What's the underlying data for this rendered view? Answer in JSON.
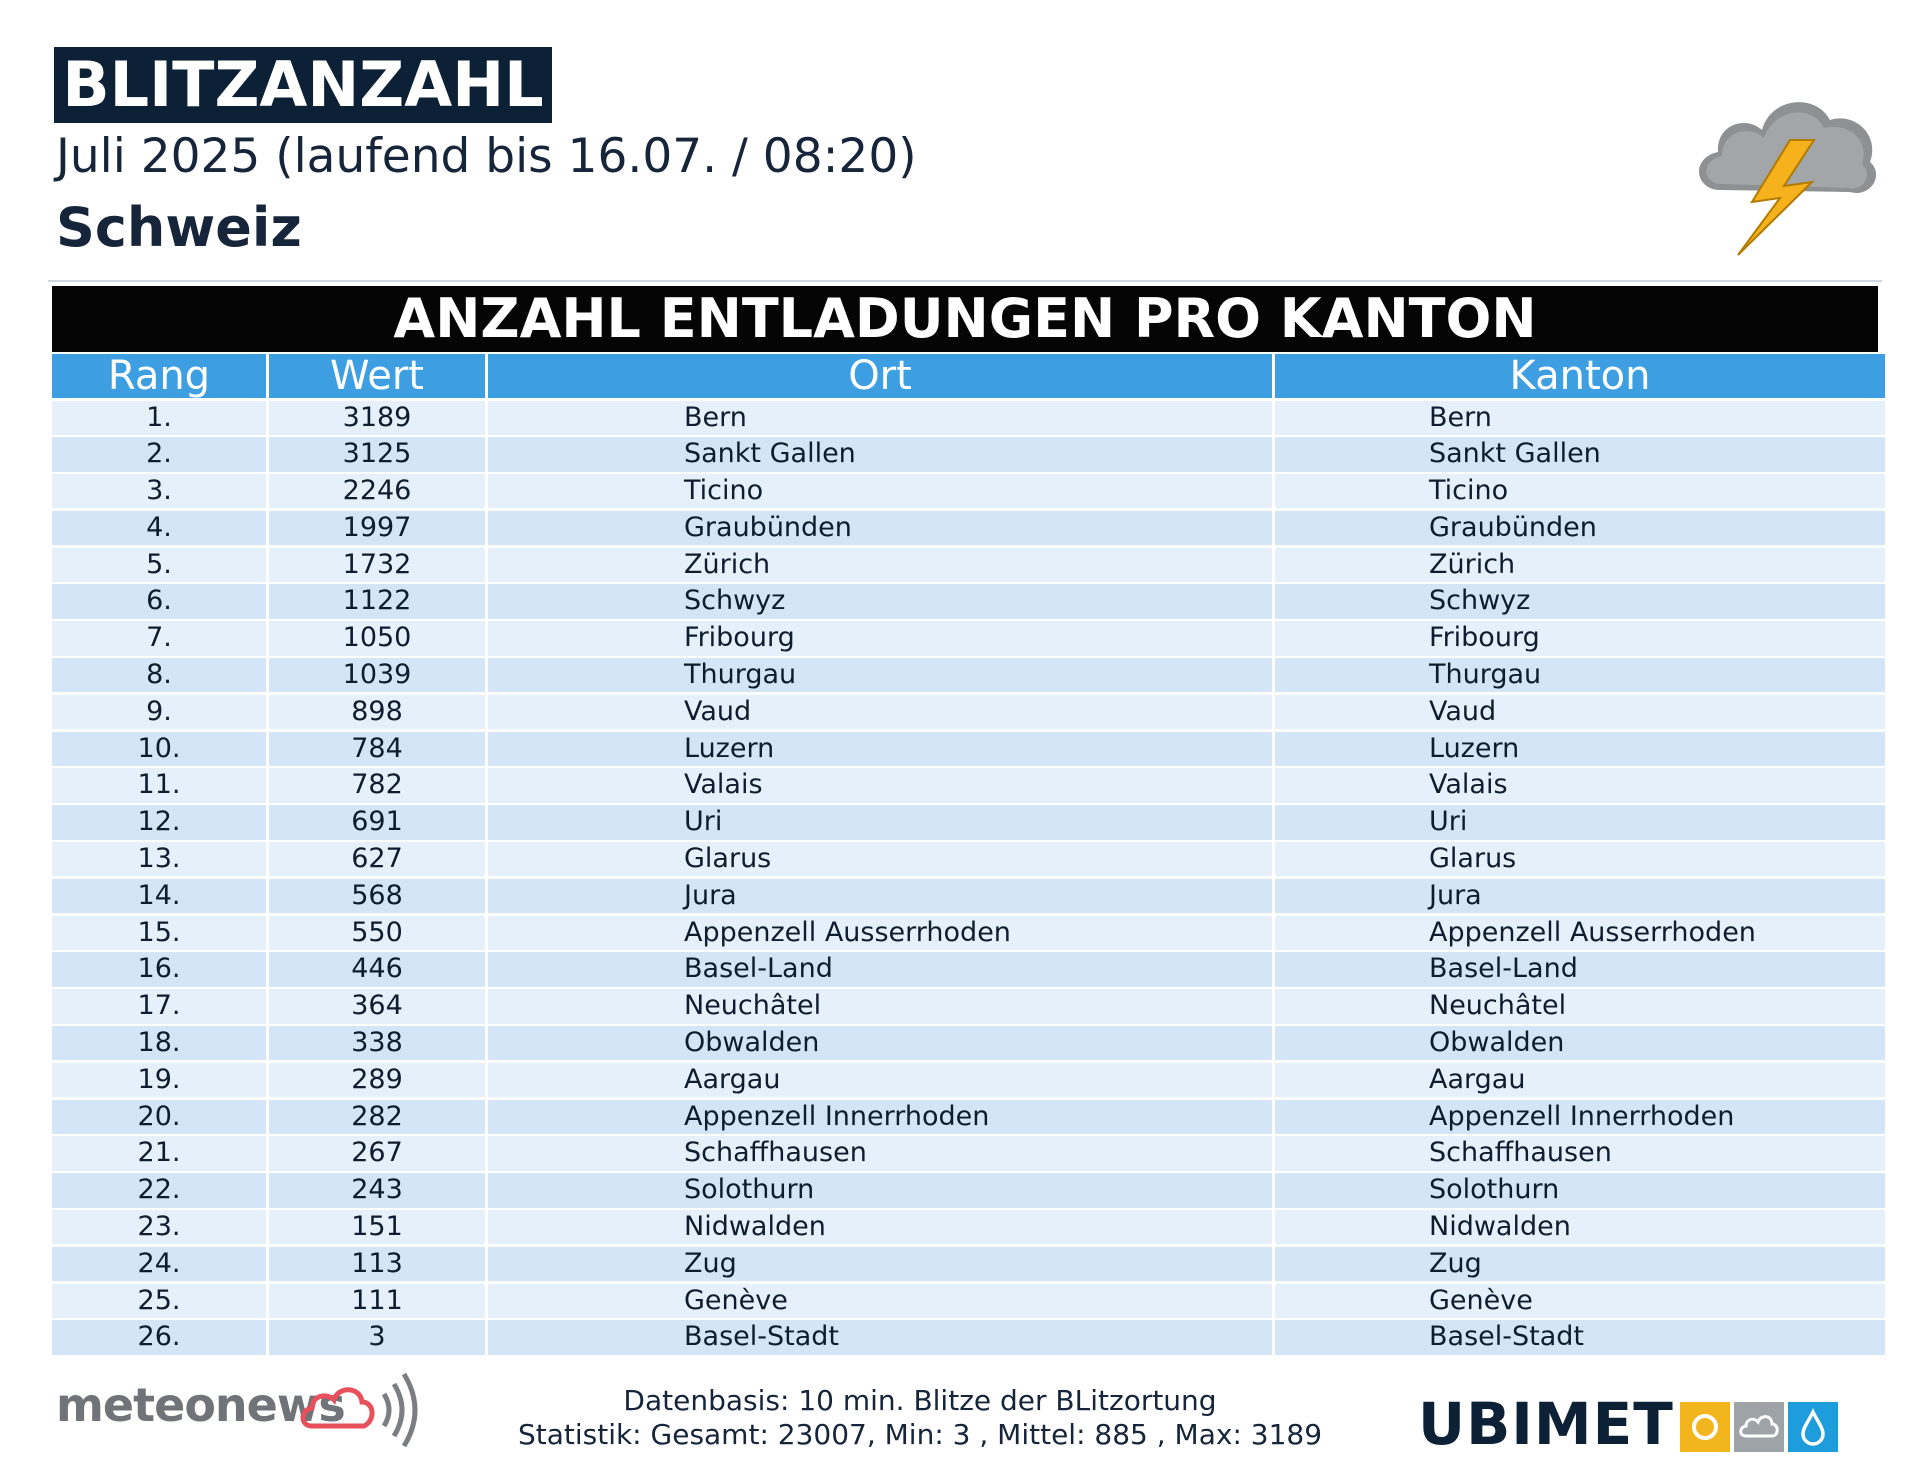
{
  "header": {
    "title": "BLITZANZAHL",
    "subtitle": "Juli 2025 (laufend bis 16.07. / 08:20)",
    "region": "Schweiz",
    "icon": "thunderstorm-cloud-icon"
  },
  "table": {
    "title": "ANZAHL ENTLADUNGEN PRO KANTON",
    "columns": [
      "Rang",
      "Wert",
      "Ort",
      "Kanton"
    ],
    "rows": [
      {
        "rank": "1.",
        "value": "3189",
        "ort": "Bern",
        "kanton": "Bern"
      },
      {
        "rank": "2.",
        "value": "3125",
        "ort": "Sankt Gallen",
        "kanton": "Sankt Gallen"
      },
      {
        "rank": "3.",
        "value": "2246",
        "ort": "Ticino",
        "kanton": "Ticino"
      },
      {
        "rank": "4.",
        "value": "1997",
        "ort": "Graubünden",
        "kanton": "Graubünden"
      },
      {
        "rank": "5.",
        "value": "1732",
        "ort": "Zürich",
        "kanton": "Zürich"
      },
      {
        "rank": "6.",
        "value": "1122",
        "ort": "Schwyz",
        "kanton": "Schwyz"
      },
      {
        "rank": "7.",
        "value": "1050",
        "ort": "Fribourg",
        "kanton": "Fribourg"
      },
      {
        "rank": "8.",
        "value": "1039",
        "ort": "Thurgau",
        "kanton": "Thurgau"
      },
      {
        "rank": "9.",
        "value": "898",
        "ort": "Vaud",
        "kanton": "Vaud"
      },
      {
        "rank": "10.",
        "value": "784",
        "ort": "Luzern",
        "kanton": "Luzern"
      },
      {
        "rank": "11.",
        "value": "782",
        "ort": "Valais",
        "kanton": "Valais"
      },
      {
        "rank": "12.",
        "value": "691",
        "ort": "Uri",
        "kanton": "Uri"
      },
      {
        "rank": "13.",
        "value": "627",
        "ort": "Glarus",
        "kanton": "Glarus"
      },
      {
        "rank": "14.",
        "value": "568",
        "ort": "Jura",
        "kanton": "Jura"
      },
      {
        "rank": "15.",
        "value": "550",
        "ort": "Appenzell Ausserrhoden",
        "kanton": "Appenzell Ausserrhoden"
      },
      {
        "rank": "16.",
        "value": "446",
        "ort": "Basel-Land",
        "kanton": "Basel-Land"
      },
      {
        "rank": "17.",
        "value": "364",
        "ort": "Neuchâtel",
        "kanton": "Neuchâtel"
      },
      {
        "rank": "18.",
        "value": "338",
        "ort": "Obwalden",
        "kanton": "Obwalden"
      },
      {
        "rank": "19.",
        "value": "289",
        "ort": "Aargau",
        "kanton": "Aargau"
      },
      {
        "rank": "20.",
        "value": "282",
        "ort": "Appenzell Innerrhoden",
        "kanton": "Appenzell Innerrhoden"
      },
      {
        "rank": "21.",
        "value": "267",
        "ort": "Schaffhausen",
        "kanton": "Schaffhausen"
      },
      {
        "rank": "22.",
        "value": "243",
        "ort": "Solothurn",
        "kanton": "Solothurn"
      },
      {
        "rank": "23.",
        "value": "151",
        "ort": "Nidwalden",
        "kanton": "Nidwalden"
      },
      {
        "rank": "24.",
        "value": "113",
        "ort": "Zug",
        "kanton": "Zug"
      },
      {
        "rank": "25.",
        "value": "111",
        "ort": "Genève",
        "kanton": "Genève"
      },
      {
        "rank": "26.",
        "value": "3",
        "ort": "Basel-Stadt",
        "kanton": "Basel-Stadt"
      }
    ]
  },
  "footer": {
    "logo_left": "meteonews",
    "line1": "Datenbasis: 10 min. Blitze der BLitzortung",
    "line2": "Statistik: Gesamt: 23007, Min: 3 , Mittel: 885 , Max: 3189",
    "logo_right": "UBIMET"
  },
  "colors": {
    "title_box": "#0c2135",
    "table_title_bg": "#050505",
    "header_blue": "#3d9fe2",
    "row_light": "#e6f0fb",
    "row_dark": "#d3e5f6",
    "lightning": "#f6b21c",
    "meteonews_cloud": "#e8505b",
    "ubimet_sun": "#f2b51d",
    "ubimet_cloud": "#9ea3a8",
    "ubimet_drop": "#1d9ddc"
  }
}
